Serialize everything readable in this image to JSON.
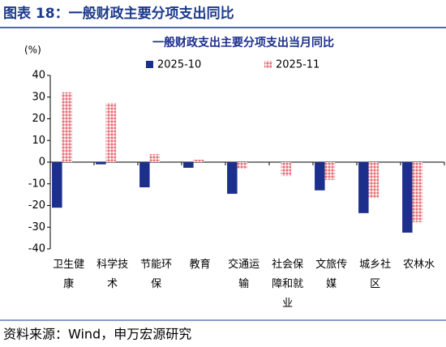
{
  "header": {
    "title": "图表 18：一般财政主要分项支出同比"
  },
  "chart_data": {
    "type": "bar",
    "title": "一般财政支出主要分项支出当月同比",
    "ylabel": "(%)",
    "categories": [
      "卫生健康",
      "科学技术",
      "节能环保",
      "教育",
      "交通运输",
      "社会保障和就业",
      "文旅传媒",
      "城乡社区",
      "农林水"
    ],
    "series": [
      {
        "name": "2025-10",
        "color": "#1c2f8c",
        "values": [
          -21,
          -1,
          -11.6,
          -2.6,
          -14.6,
          0,
          -13,
          -23.5,
          -32.5
        ]
      },
      {
        "name": "2025-11",
        "color": "#e8727a",
        "values": [
          32.2,
          27.3,
          3.7,
          1.1,
          -3,
          -6.4,
          -8.2,
          -16.4,
          -27.7
        ]
      }
    ],
    "ylim": [
      -40,
      40
    ],
    "yticks": [
      -40,
      -30,
      -20,
      -10,
      0,
      10,
      20,
      30,
      40
    ],
    "legend": "top"
  },
  "footer": {
    "source": "资料来源：Wind，申万宏源研究"
  }
}
